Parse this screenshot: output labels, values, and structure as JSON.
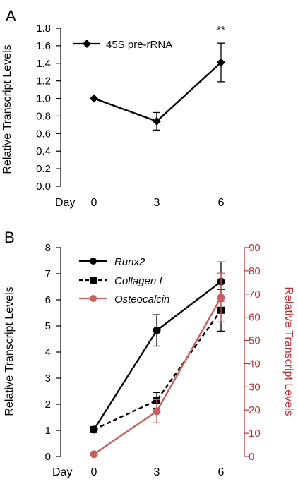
{
  "chart_data": [
    {
      "type": "line",
      "panel_label": "A",
      "x_prefix_label": "Day",
      "categories": [
        "0",
        "3",
        "6"
      ],
      "ylabel": "Relative Transcript Levels",
      "ylim": [
        0,
        1.8
      ],
      "yticks": [
        "0.0",
        "0.2",
        "0.4",
        "0.6",
        "0.8",
        "1.0",
        "1.2",
        "1.4",
        "1.6",
        "1.8"
      ],
      "series": [
        {
          "name": "45S pre-rRNA",
          "values": [
            1.0,
            0.74,
            1.41
          ],
          "errors": [
            0,
            0.1,
            0.22
          ],
          "color": "#000000",
          "marker": "diamond",
          "dash": "solid"
        }
      ],
      "annotations": [
        {
          "text": "**",
          "category_index": 2
        }
      ],
      "legend_position": "top-left",
      "grid": false
    },
    {
      "type": "line",
      "panel_label": "B",
      "x_prefix_label": "Day",
      "categories": [
        "0",
        "3",
        "6"
      ],
      "ylabel": "Relative Transcript Levels",
      "ylim": [
        0,
        8
      ],
      "yticks": [
        "0",
        "1",
        "2",
        "3",
        "4",
        "5",
        "6",
        "7",
        "8"
      ],
      "y2label": "Relative Transcript Levels",
      "y2lim": [
        0,
        90
      ],
      "y2ticks": [
        "0",
        "10",
        "20",
        "30",
        "40",
        "50",
        "60",
        "70",
        "80",
        "90"
      ],
      "y2color": "#b5333a",
      "series": [
        {
          "name": "Runx2",
          "values": [
            1.03,
            4.83,
            6.7
          ],
          "errors": [
            0,
            0.6,
            0.75
          ],
          "color": "#000000",
          "marker": "circle",
          "dash": "solid",
          "axis": "left"
        },
        {
          "name": "Collagen I",
          "values": [
            1.03,
            2.15,
            5.6
          ],
          "errors": [
            0,
            0.3,
            0.8
          ],
          "color": "#000000",
          "marker": "square",
          "dash": "dashed",
          "axis": "left"
        },
        {
          "name": "Osteocalcin",
          "values": [
            1,
            19.5,
            68.5
          ],
          "errors": [
            0,
            5,
            10.5
          ],
          "color": "#c9605f",
          "marker": "circle",
          "dash": "solid",
          "axis": "right"
        }
      ],
      "legend_position": "top-left",
      "grid": false
    }
  ]
}
